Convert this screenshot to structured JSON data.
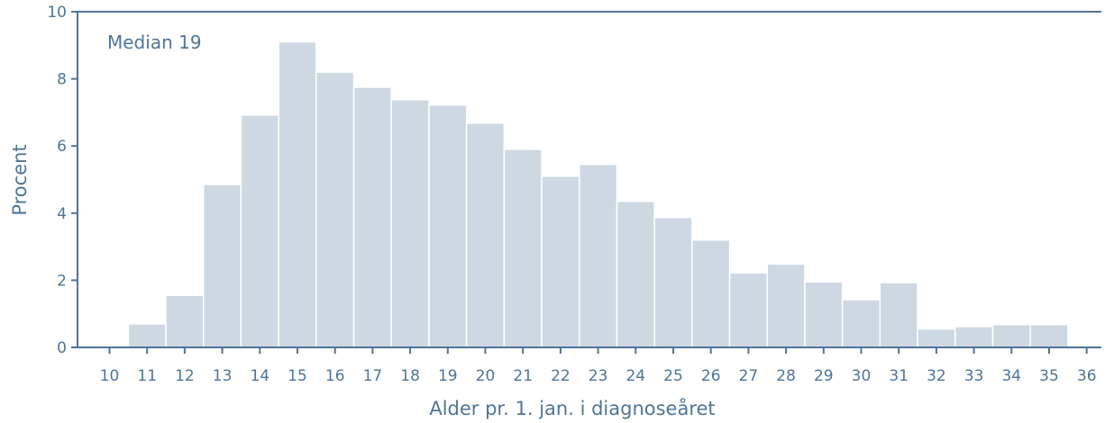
{
  "chart_data": {
    "type": "bar",
    "xlabel": "Alder pr. 1. jan. i diagnoseåret",
    "ylabel": "Procent",
    "annotation": "Median 19",
    "ylim": [
      0,
      10
    ],
    "yticks": [
      0,
      2,
      4,
      6,
      8,
      10
    ],
    "xlim": [
      10,
      36
    ],
    "xticks": [
      10,
      11,
      12,
      13,
      14,
      15,
      16,
      17,
      18,
      19,
      20,
      21,
      22,
      23,
      24,
      25,
      26,
      27,
      28,
      29,
      30,
      31,
      32,
      33,
      34,
      35,
      36
    ],
    "categories": [
      11,
      12,
      13,
      14,
      15,
      16,
      17,
      18,
      19,
      20,
      21,
      22,
      23,
      24,
      25,
      26,
      27,
      28,
      29,
      30,
      31,
      32,
      33,
      34,
      35
    ],
    "values": [
      0.7,
      1.55,
      4.85,
      6.92,
      9.1,
      8.2,
      7.75,
      7.38,
      7.22,
      6.68,
      5.9,
      5.1,
      5.45,
      4.35,
      3.87,
      3.2,
      2.22,
      2.48,
      1.95,
      1.42,
      1.93,
      0.55,
      0.62,
      0.68,
      0.68
    ],
    "grid": false,
    "colors": {
      "bar": "#cdd8e2",
      "bar_edge": "#ffffff",
      "axis": "#4f7596",
      "text": "#4f7596"
    }
  }
}
